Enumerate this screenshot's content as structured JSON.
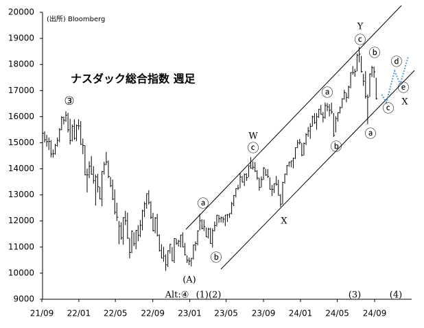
{
  "chart_data": {
    "type": "ohlc",
    "source": "(出所) Bloomberg",
    "title": "ナスダック総合指数 週足",
    "color": "#000000",
    "x": [
      0,
      1,
      2,
      3,
      4,
      5,
      6,
      7,
      8,
      9,
      10,
      11,
      12,
      13,
      14,
      15,
      16,
      17,
      18,
      19,
      20,
      21,
      22,
      23,
      24,
      25,
      26,
      27,
      28,
      29,
      30,
      31,
      32,
      33,
      34,
      35,
      36,
      37,
      38,
      39,
      40,
      41,
      42,
      43,
      44,
      45,
      46,
      47,
      48,
      49,
      50,
      51,
      52,
      53,
      54,
      55,
      56,
      57,
      58,
      59,
      60,
      61,
      62,
      63,
      64,
      65,
      66,
      67,
      68,
      69,
      70,
      71,
      72,
      73,
      74,
      75,
      76,
      77,
      78,
      79,
      80,
      81,
      82,
      83,
      84,
      85,
      86,
      87,
      88,
      89,
      90,
      91,
      92,
      93,
      94,
      95,
      96,
      97,
      98,
      99,
      100,
      101,
      102,
      103,
      104,
      105,
      106,
      107,
      108,
      109,
      110,
      111,
      112,
      113,
      114,
      115,
      116,
      117,
      118,
      119,
      120,
      121,
      122,
      123,
      124,
      125,
      126,
      127,
      128,
      129,
      130,
      131,
      132,
      133,
      134,
      135,
      136,
      137,
      138,
      139,
      140,
      141,
      142,
      143,
      144,
      145,
      146,
      147,
      148,
      149,
      150,
      151,
      152,
      153,
      154,
      155,
      156,
      157
    ],
    "high": [
      15410,
      15440,
      15300,
      15200,
      15100,
      14740,
      14960,
      15200,
      15560,
      16020,
      16000,
      16210,
      16150,
      15920,
      15700,
      15900,
      15700,
      15900,
      15830,
      15160,
      14910,
      14010,
      14290,
      14490,
      14100,
      13780,
      13810,
      13310,
      13920,
      14270,
      14650,
      14320,
      13690,
      13590,
      13210,
      12700,
      12000,
      11950,
      12140,
      12390,
      12320,
      11350,
      11640,
      11570,
      11660,
      11840,
      12040,
      12430,
      12740,
      13050,
      13180,
      12760,
      12310,
      12150,
      12270,
      11490,
      11110,
      11010,
      10720,
      10880,
      11120,
      11000,
      11340,
      11330,
      11280,
      11470,
      11570,
      11160,
      10680,
      10600,
      10580,
      11090,
      11220,
      11640,
      12270,
      12070,
      12050,
      11750,
      11740,
      11740,
      11720,
      11980,
      12230,
      12230,
      12170,
      12170,
      12230,
      12270,
      12300,
      12730,
      13000,
      13260,
      13390,
      13830,
      13720,
      13820,
      13830,
      14130,
      14450,
      14290,
      14260,
      13950,
      13660,
      13710,
      14060,
      14000,
      13990,
      13670,
      13380,
      13440,
      13730,
      13580,
      13030,
      13500,
      13810,
      14140,
      14270,
      14310,
      14430,
      14820,
      15110,
      15150,
      14990,
      15010,
      15370,
      15600,
      15750,
      16040,
      16130,
      16140,
      16300,
      16450,
      16180,
      16540,
      16520,
      16480,
      16540,
      16140,
      16010,
      16170,
      16390,
      16700,
      17030,
      16920,
      17190,
      17700,
      17940,
      17830,
      18420,
      18670,
      18330,
      17640,
      17750,
      16850,
      17660,
      17950,
      17920,
      17490
    ],
    "low": [
      15150,
      15010,
      14850,
      14720,
      14440,
      14430,
      14540,
      14850,
      15020,
      15480,
      15700,
      15800,
      15400,
      14930,
      15050,
      15110,
      15060,
      15500,
      14920,
      14560,
      13750,
      13090,
      13640,
      13780,
      13430,
      12590,
      13100,
      12830,
      12560,
      13780,
      14140,
      13640,
      13300,
      12800,
      12250,
      12000,
      11110,
      11280,
      11090,
      11840,
      11320,
      10570,
      10770,
      11040,
      10920,
      11220,
      11380,
      11640,
      12150,
      12470,
      12630,
      12070,
      11600,
      11530,
      11410,
      10830,
      10570,
      10440,
      10090,
      10240,
      10750,
      10460,
      10390,
      11090,
      11020,
      10990,
      10990,
      10680,
      10390,
      10310,
      10260,
      10520,
      10850,
      11070,
      11640,
      11680,
      11620,
      11380,
      11330,
      11130,
      10980,
      11600,
      11790,
      11930,
      11950,
      11930,
      11800,
      11960,
      12120,
      12260,
      12570,
      12900,
      13190,
      13260,
      13480,
      13340,
      13540,
      13680,
      14000,
      13970,
      13880,
      13580,
      13160,
      13290,
      13580,
      13730,
      13650,
      13200,
      12960,
      13070,
      13360,
      12980,
      12540,
      12640,
      13430,
      13750,
      14080,
      14060,
      14020,
      14370,
      14790,
      14930,
      14480,
      14510,
      14910,
      15230,
      15150,
      15620,
      15720,
      15500,
      15950,
      16080,
      15780,
      15920,
      16210,
      16010,
      16100,
      15220,
      15400,
      15810,
      16120,
      16330,
      16650,
      16550,
      16690,
      17090,
      17610,
      17530,
      17740,
      18080,
      17690,
      17180,
      16690,
      15710,
      16760,
      17520,
      17490,
      16660
    ],
    "close": [
      15363,
      15115,
      15044,
      15048,
      14567,
      14580,
      14897,
      15090,
      15498,
      15971,
      15861,
      16057,
      15492,
      15085,
      15630,
      15169,
      15653,
      15645,
      14936,
      14894,
      13769,
      13771,
      14098,
      13791,
      13548,
      13694,
      13313,
      12843,
      13893,
      14169,
      14262,
      13711,
      13351,
      12839,
      12335,
      12145,
      11805,
      11354,
      12131,
      12013,
      11341,
      10798,
      11608,
      11128,
      11636,
      11452,
      11834,
      12391,
      12657,
      13047,
      12706,
      12142,
      11631,
      12112,
      11448,
      10868,
      10576,
      10652,
      10321,
      10859,
      11102,
      10475,
      11323,
      11146,
      11226,
      11461,
      11005,
      10705,
      10497,
      10466,
      10569,
      11079,
      11140,
      11622,
      12007,
      11718,
      11787,
      11395,
      11689,
      11138,
      11630,
      11824,
      12222,
      12088,
      12124,
      12073,
      12227,
      12236,
      12285,
      12658,
      12976,
      13241,
      13259,
      13689,
      13492,
      13788,
      13661,
      14113,
      14032,
      14058,
      13909,
      13645,
      13291,
      13590,
      14031,
      13762,
      13708,
      13212,
      13219,
      13431,
      13407,
      12984,
      12643,
      13478,
      13798,
      14125,
      14250,
      14305,
      14404,
      14813,
      14993,
      15011,
      14524,
      14973,
      15311,
      15455,
      15629,
      15990,
      15776,
      15997,
      16275,
      16085,
      15973,
      16429,
      16379,
      16249,
      16175,
      15282,
      15928,
      16156,
      16341,
      16686,
      16921,
      16735,
      17133,
      17689,
      17689,
      17733,
      18353,
      18398,
      17727,
      17358,
      16776,
      16745,
      17632,
      17877,
      17714,
      16691
    ],
    "xlim": [
      -0.3,
      173.7
    ],
    "ylim": [
      9000,
      20000
    ],
    "xticks": [
      {
        "value": -0.3,
        "label": "21/09"
      },
      {
        "value": 17.1,
        "label": "22/01"
      },
      {
        "value": 34.3,
        "label": "22/05"
      },
      {
        "value": 51.9,
        "label": "22/09"
      },
      {
        "value": 69.3,
        "label": "23/01"
      },
      {
        "value": 86.4,
        "label": "23/05"
      },
      {
        "value": 104,
        "label": "23/09"
      },
      {
        "value": 121.4,
        "label": "24/01"
      },
      {
        "value": 138.7,
        "label": "24/05"
      },
      {
        "value": 156.3,
        "label": "24/09"
      }
    ],
    "yticks": [
      9000,
      10000,
      11000,
      12000,
      13000,
      14000,
      15000,
      16000,
      17000,
      18000,
      19000,
      20000
    ],
    "channel": [
      {
        "x": [
          67.5,
          168.9
        ],
        "values": [
          11678,
          20263
        ]
      },
      {
        "x": [
          84,
          175
        ],
        "values": [
          10155,
          17769
        ]
      }
    ],
    "projection": {
      "x": [
        159.6,
        161.8,
        165.7,
        168.3,
        172.1
      ],
      "values": [
        16850,
        16550,
        17750,
        17250,
        18300
      ],
      "color": "#5b9bd5"
    },
    "annotations": [
      "③",
      "W",
      "ⓒ",
      "ⓐ",
      "ⓑ",
      "X",
      "(A)",
      "Alt:④",
      "(1)(2)",
      "ⓐ",
      "ⓑ",
      "Y",
      "ⓒ",
      "ⓑ",
      "ⓐ",
      "ⓒ",
      "ⓓ",
      "ⓔ",
      "X",
      "(3)",
      "(4)"
    ]
  }
}
